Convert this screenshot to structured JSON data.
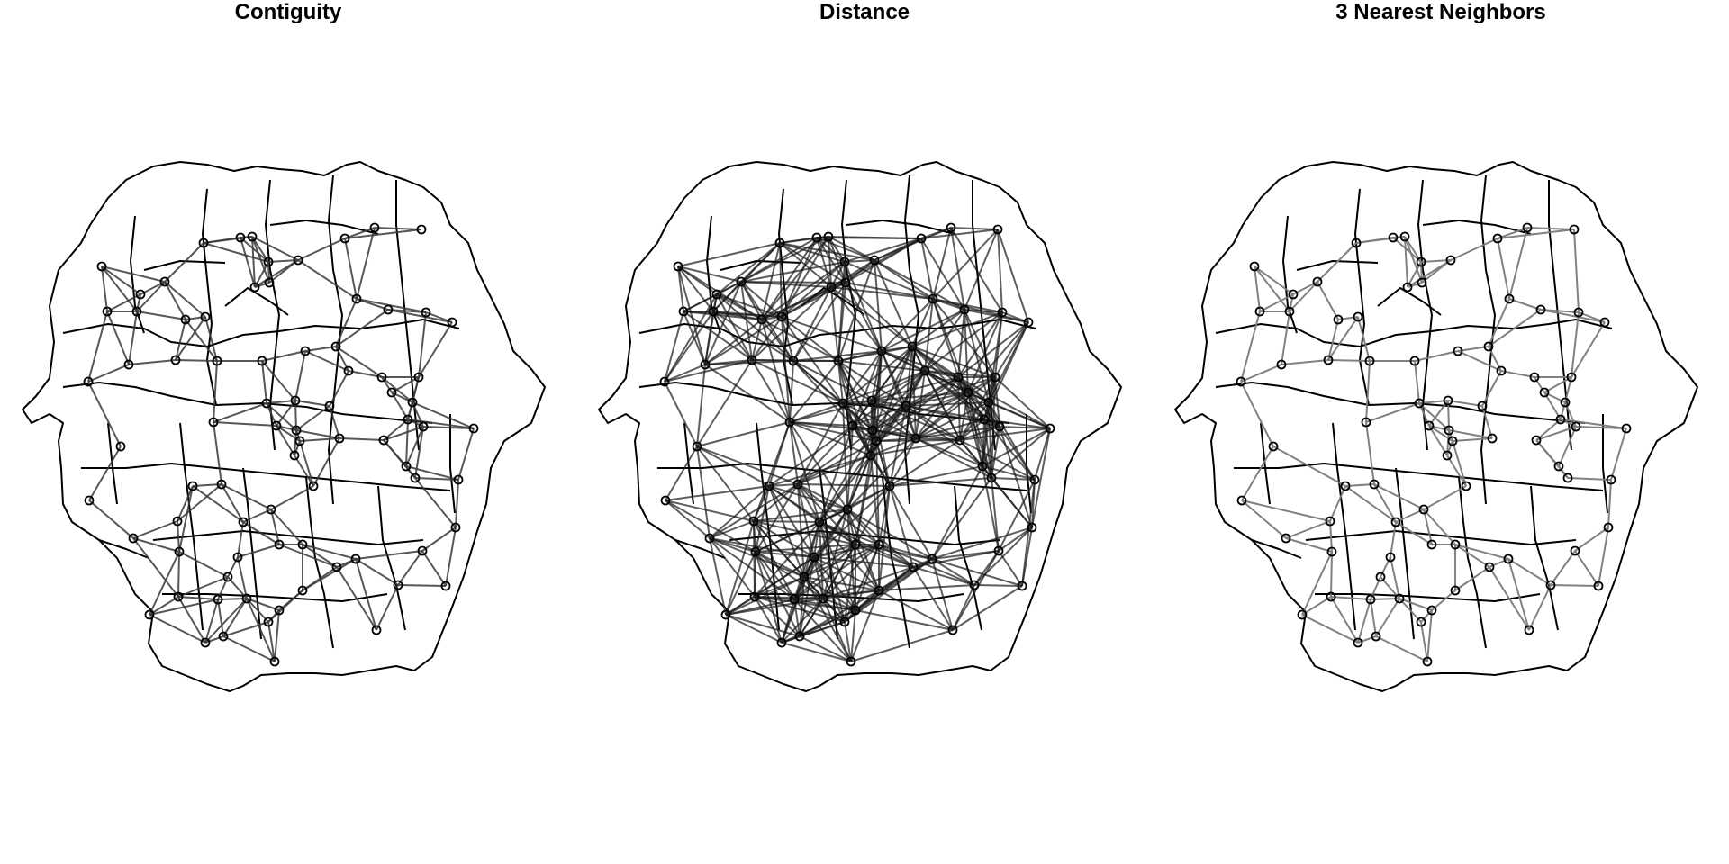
{
  "panels": [
    {
      "title": "Contiguity",
      "link_color": "#3a3a3a",
      "link_opacity": 0.85
    },
    {
      "title": "Distance",
      "link_color": "#1a1a1a",
      "link_opacity": 0.7
    },
    {
      "title": "3 Nearest Neighbors",
      "link_color": "#7a7a7a",
      "link_opacity": 0.95
    }
  ],
  "colors": {
    "border": "#000000",
    "background": "#ffffff"
  }
}
